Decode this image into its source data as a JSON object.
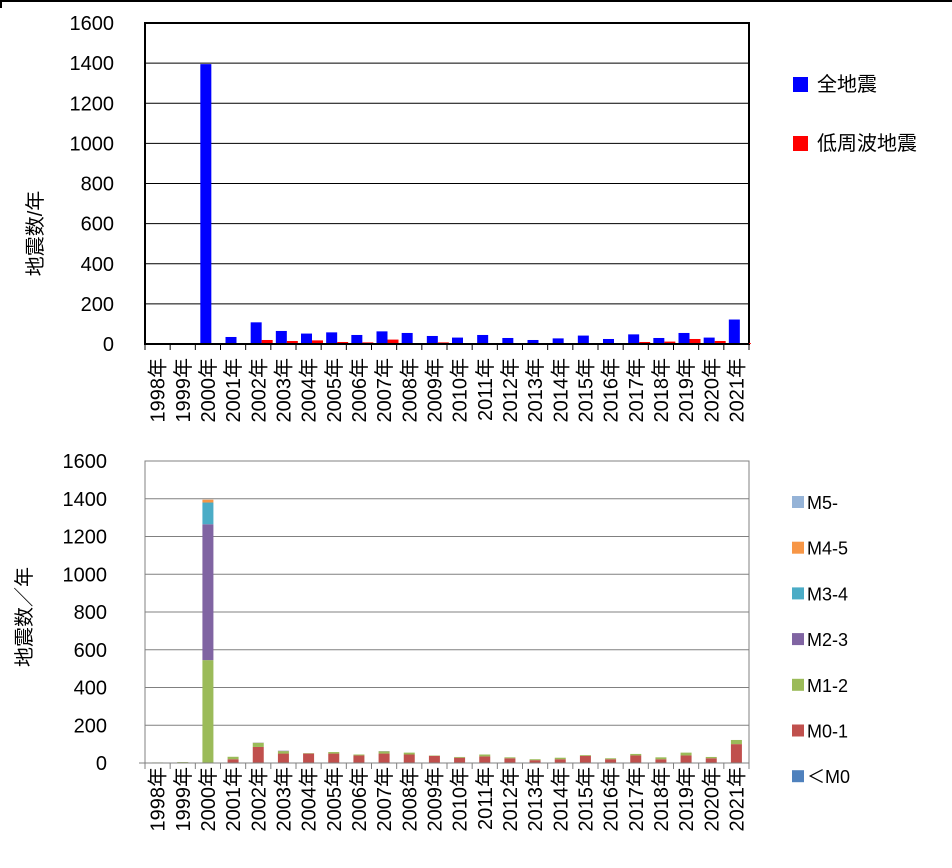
{
  "chart_data": [
    {
      "type": "bar",
      "ylabel": "地震数/年",
      "ylim": [
        0,
        1600
      ],
      "yticks": [
        0,
        200,
        400,
        600,
        800,
        1000,
        1200,
        1400,
        1600
      ],
      "grid": true,
      "legend_position": "right",
      "categories": [
        "1998年",
        "1999年",
        "2000年",
        "2001年",
        "2002年",
        "2003年",
        "2004年",
        "2005年",
        "2006年",
        "2007年",
        "2008年",
        "2009年",
        "2010年",
        "2011年",
        "2012年",
        "2013年",
        "2014年",
        "2015年",
        "2016年",
        "2017年",
        "2018年",
        "2019年",
        "2020年",
        "2021年"
      ],
      "series": [
        {
          "name": "全地震",
          "color": "#0000ff",
          "values": [
            3,
            5,
            1395,
            35,
            108,
            65,
            52,
            58,
            45,
            63,
            55,
            40,
            32,
            45,
            30,
            20,
            28,
            42,
            25,
            48,
            30,
            55,
            32,
            122
          ]
        },
        {
          "name": "低周波地震",
          "color": "#ff0000",
          "values": [
            0,
            3,
            0,
            2,
            20,
            15,
            18,
            10,
            8,
            22,
            5,
            8,
            3,
            5,
            3,
            2,
            3,
            4,
            4,
            10,
            12,
            25,
            15,
            5
          ]
        }
      ]
    },
    {
      "type": "bar",
      "stacked": true,
      "ylabel": "地震数／年",
      "ylim": [
        0,
        1600
      ],
      "yticks": [
        0,
        200,
        400,
        600,
        800,
        1000,
        1200,
        1400,
        1600
      ],
      "grid": true,
      "legend_position": "right",
      "categories": [
        "1998年",
        "1999年",
        "2000年",
        "2001年",
        "2002年",
        "2003年",
        "2004年",
        "2005年",
        "2006年",
        "2007年",
        "2008年",
        "2009年",
        "2010年",
        "2011年",
        "2012年",
        "2013年",
        "2014年",
        "2015年",
        "2016年",
        "2017年",
        "2018年",
        "2019年",
        "2020年",
        "2021年"
      ],
      "series": [
        {
          "name": "＜M0",
          "color": "#4f81bd",
          "values": [
            0,
            0,
            0,
            0,
            0,
            0,
            0,
            0,
            0,
            0,
            0,
            0,
            0,
            0,
            0,
            0,
            0,
            0,
            0,
            0,
            0,
            0,
            0,
            0
          ]
        },
        {
          "name": "M0-1",
          "color": "#c0504d",
          "values": [
            2,
            3,
            0,
            20,
            85,
            50,
            50,
            50,
            40,
            50,
            45,
            38,
            28,
            35,
            25,
            15,
            20,
            38,
            20,
            40,
            20,
            40,
            25,
            100
          ]
        },
        {
          "name": "M1-2",
          "color": "#9bbb59",
          "values": [
            1,
            2,
            545,
            13,
            22,
            13,
            2,
            8,
            5,
            12,
            10,
            2,
            4,
            10,
            5,
            5,
            8,
            4,
            5,
            8,
            10,
            15,
            7,
            22
          ]
        },
        {
          "name": "M2-3",
          "color": "#8064a2",
          "values": [
            0,
            0,
            720,
            0,
            1,
            2,
            0,
            0,
            0,
            1,
            0,
            0,
            0,
            0,
            0,
            0,
            0,
            0,
            0,
            0,
            0,
            0,
            0,
            0
          ]
        },
        {
          "name": "M3-4",
          "color": "#4bacc6",
          "values": [
            0,
            0,
            115,
            0,
            0,
            0,
            0,
            0,
            0,
            0,
            0,
            0,
            0,
            0,
            0,
            0,
            0,
            0,
            0,
            0,
            0,
            0,
            0,
            0
          ]
        },
        {
          "name": "M4-5",
          "color": "#f79646",
          "values": [
            0,
            0,
            15,
            0,
            0,
            0,
            0,
            0,
            0,
            0,
            0,
            0,
            0,
            0,
            0,
            0,
            0,
            0,
            0,
            0,
            0,
            0,
            0,
            0
          ]
        },
        {
          "name": "M5-",
          "color": "#95b3d7",
          "values": [
            0,
            0,
            0,
            0,
            0,
            0,
            0,
            0,
            0,
            0,
            0,
            0,
            0,
            0,
            0,
            0,
            0,
            0,
            0,
            0,
            0,
            0,
            0,
            0
          ]
        }
      ]
    }
  ]
}
